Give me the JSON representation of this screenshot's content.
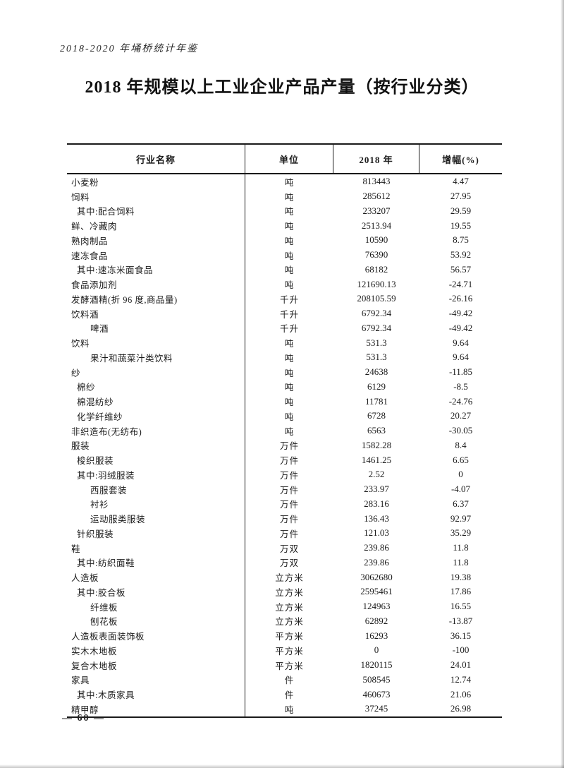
{
  "page": {
    "yearbook_header": "2018-2020 年埇桥统计年鉴",
    "title": "2018 年规模以上工业企业产品产量（按行业分类）",
    "page_number": "— 60 —"
  },
  "table": {
    "columns": [
      "行业名称",
      "单位",
      "2018 年",
      "增幅(%)"
    ],
    "rows": [
      {
        "name": "小麦粉",
        "indent": 0,
        "unit": "吨",
        "value": "813443",
        "growth": "4.47"
      },
      {
        "name": "饲料",
        "indent": 0,
        "unit": "吨",
        "value": "285612",
        "growth": "27.95"
      },
      {
        "name": "其中:配合饲料",
        "indent": 1,
        "unit": "吨",
        "value": "233207",
        "growth": "29.59"
      },
      {
        "name": "鲜、冷藏肉",
        "indent": 0,
        "unit": "吨",
        "value": "2513.94",
        "growth": "19.55"
      },
      {
        "name": "熟肉制品",
        "indent": 0,
        "unit": "吨",
        "value": "10590",
        "growth": "8.75"
      },
      {
        "name": "速冻食品",
        "indent": 0,
        "unit": "吨",
        "value": "76390",
        "growth": "53.92"
      },
      {
        "name": "其中:速冻米面食品",
        "indent": 1,
        "unit": "吨",
        "value": "68182",
        "growth": "56.57"
      },
      {
        "name": "食品添加剂",
        "indent": 0,
        "unit": "吨",
        "value": "121690.13",
        "growth": "-24.71"
      },
      {
        "name": "发酵酒精(折 96 度,商品量)",
        "indent": 0,
        "unit": "千升",
        "value": "208105.59",
        "growth": "-26.16"
      },
      {
        "name": "饮料酒",
        "indent": 0,
        "unit": "千升",
        "value": "6792.34",
        "growth": "-49.42"
      },
      {
        "name": "啤酒",
        "indent": 2,
        "unit": "千升",
        "value": "6792.34",
        "growth": "-49.42"
      },
      {
        "name": "饮料",
        "indent": 0,
        "unit": "吨",
        "value": "531.3",
        "growth": "9.64"
      },
      {
        "name": "果汁和蔬菜汁类饮料",
        "indent": 2,
        "unit": "吨",
        "value": "531.3",
        "growth": "9.64"
      },
      {
        "name": "纱",
        "indent": 0,
        "unit": "吨",
        "value": "24638",
        "growth": "-11.85"
      },
      {
        "name": "棉纱",
        "indent": 1,
        "unit": "吨",
        "value": "6129",
        "growth": "-8.5"
      },
      {
        "name": "棉混纺纱",
        "indent": 1,
        "unit": "吨",
        "value": "11781",
        "growth": "-24.76"
      },
      {
        "name": "化学纤维纱",
        "indent": 1,
        "unit": "吨",
        "value": "6728",
        "growth": "20.27"
      },
      {
        "name": "非织造布(无纺布)",
        "indent": 0,
        "unit": "吨",
        "value": "6563",
        "growth": "-30.05"
      },
      {
        "name": "服装",
        "indent": 0,
        "unit": "万件",
        "value": "1582.28",
        "growth": "8.4"
      },
      {
        "name": "梭织服装",
        "indent": 1,
        "unit": "万件",
        "value": "1461.25",
        "growth": "6.65"
      },
      {
        "name": "其中:羽绒服装",
        "indent": 1,
        "unit": "万件",
        "value": "2.52",
        "growth": "0"
      },
      {
        "name": "西服套装",
        "indent": 2,
        "unit": "万件",
        "value": "233.97",
        "growth": "-4.07"
      },
      {
        "name": "衬衫",
        "indent": 2,
        "unit": "万件",
        "value": "283.16",
        "growth": "6.37"
      },
      {
        "name": "运动服类服装",
        "indent": 2,
        "unit": "万件",
        "value": "136.43",
        "growth": "92.97"
      },
      {
        "name": "针织服装",
        "indent": 1,
        "unit": "万件",
        "value": "121.03",
        "growth": "35.29"
      },
      {
        "name": "鞋",
        "indent": 0,
        "unit": "万双",
        "value": "239.86",
        "growth": "11.8"
      },
      {
        "name": "其中:纺织面鞋",
        "indent": 1,
        "unit": "万双",
        "value": "239.86",
        "growth": "11.8"
      },
      {
        "name": "人造板",
        "indent": 0,
        "unit": "立方米",
        "value": "3062680",
        "growth": "19.38"
      },
      {
        "name": "其中:胶合板",
        "indent": 1,
        "unit": "立方米",
        "value": "2595461",
        "growth": "17.86"
      },
      {
        "name": "纤维板",
        "indent": 2,
        "unit": "立方米",
        "value": "124963",
        "growth": "16.55"
      },
      {
        "name": "刨花板",
        "indent": 2,
        "unit": "立方米",
        "value": "62892",
        "growth": "-13.87"
      },
      {
        "name": "人造板表面装饰板",
        "indent": 0,
        "unit": "平方米",
        "value": "16293",
        "growth": "36.15"
      },
      {
        "name": "实木木地板",
        "indent": 0,
        "unit": "平方米",
        "value": "0",
        "growth": "-100"
      },
      {
        "name": "复合木地板",
        "indent": 0,
        "unit": "平方米",
        "value": "1820115",
        "growth": "24.01"
      },
      {
        "name": "家具",
        "indent": 0,
        "unit": "件",
        "value": "508545",
        "growth": "12.74"
      },
      {
        "name": "其中:木质家具",
        "indent": 1,
        "unit": "件",
        "value": "460673",
        "growth": "21.06"
      },
      {
        "name": "精甲醇",
        "indent": 0,
        "unit": "吨",
        "value": "37245",
        "growth": "26.98"
      }
    ]
  }
}
